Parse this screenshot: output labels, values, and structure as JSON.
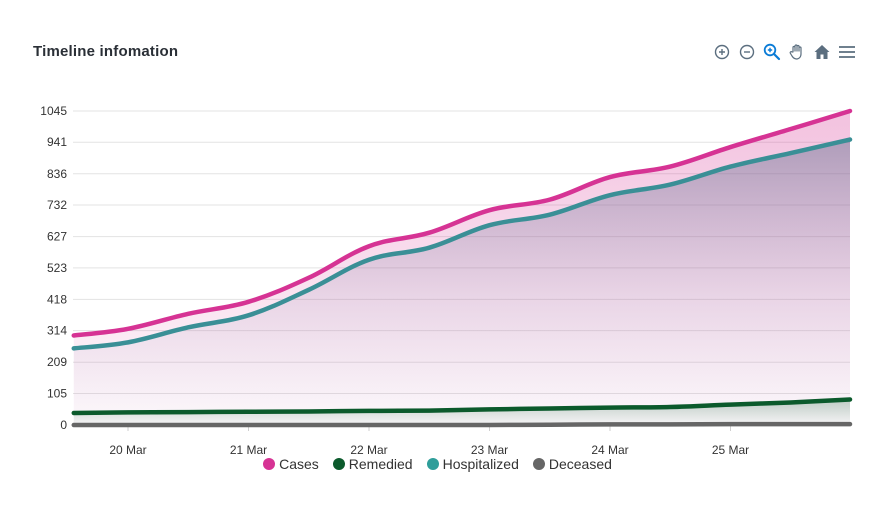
{
  "header": {
    "title": "Timeline infomation"
  },
  "toolbar": {
    "icons": [
      "zoom-in-icon",
      "zoom-out-icon",
      "selection-zoom-icon",
      "pan-icon",
      "reset-home-icon",
      "menu-icon"
    ]
  },
  "colors": {
    "Cases": "#d63394",
    "Remedied": "#0b5a2c",
    "Hospitalized": "#2f9e9a",
    "Deceased": "#666666",
    "hospitalized_line": "#3a8f96",
    "toolbar_icon": "#5b6e7f",
    "toolbar_active": "#0a7bd6"
  },
  "chart_data": {
    "type": "area",
    "title": "Timeline infomation",
    "xlabel": "",
    "ylabel": "",
    "x_ticks": [
      "20 Mar",
      "21 Mar",
      "22 Mar",
      "23 Mar",
      "24 Mar",
      "25 Mar"
    ],
    "y_ticks": [
      0,
      105,
      209,
      314,
      418,
      523,
      627,
      732,
      836,
      941,
      1045
    ],
    "ylim": [
      0,
      1045
    ],
    "grid": true,
    "legend_position": "bottom",
    "x": [
      -0.45,
      0,
      0.5,
      1,
      1.5,
      2,
      2.5,
      3,
      3.5,
      4,
      4.5,
      5,
      5.5,
      6
    ],
    "series": [
      {
        "name": "Cases",
        "values": [
          298,
          320,
          370,
          410,
          490,
          595,
          640,
          715,
          750,
          825,
          860,
          925,
          985,
          1045
        ]
      },
      {
        "name": "Remedied",
        "values": [
          40,
          42,
          43,
          44,
          45,
          47,
          48,
          52,
          55,
          58,
          60,
          68,
          75,
          85
        ]
      },
      {
        "name": "Hospitalized",
        "values": [
          255,
          275,
          325,
          365,
          450,
          550,
          590,
          665,
          700,
          765,
          800,
          860,
          905,
          950
        ]
      },
      {
        "name": "Deceased",
        "values": [
          0,
          0,
          0,
          0,
          0,
          0,
          0,
          0,
          1,
          2,
          2,
          3,
          3,
          3
        ]
      }
    ]
  }
}
